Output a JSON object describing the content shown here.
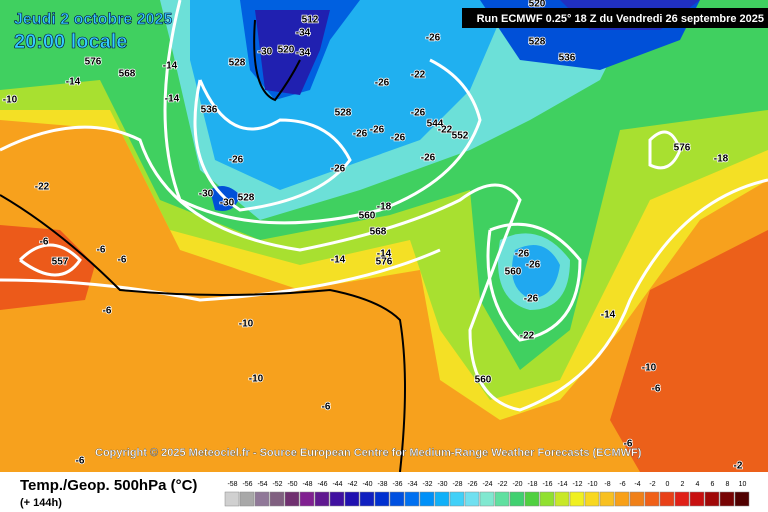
{
  "header": {
    "date": "Jeudi 2 octobre 2025",
    "time": "20:00 locale",
    "run": "Run ECMWF 0.25° 18 Z du Vendredi 26 septembre 2025"
  },
  "copyright": "Copyright © 2025 Meteociel.fr - Source European Centre for Medium-Range Weather Forecasts (ECMWF)",
  "footer": {
    "title": "Temp./Geop. 500hPa (°C)",
    "lead": "(+ 144h)"
  },
  "legend": {
    "ticks": [
      -58,
      -56,
      -54,
      -52,
      -50,
      -48,
      -46,
      -44,
      -42,
      -40,
      -38,
      -36,
      -34,
      -32,
      -30,
      -28,
      -26,
      -24,
      -22,
      -20,
      -18,
      -16,
      -14,
      -12,
      -10,
      -8,
      -6,
      -4,
      -2,
      0,
      2,
      4,
      6,
      8,
      10
    ],
    "colors": [
      "#d0d0d0",
      "#a8a8a8",
      "#907898",
      "#806080",
      "#703070",
      "#802090",
      "#601890",
      "#4010a0",
      "#2010b0",
      "#1020c0",
      "#0030d0",
      "#0050e0",
      "#0070f0",
      "#0090f8",
      "#10b0f8",
      "#40d0f8",
      "#70e0f0",
      "#80e8d0",
      "#60e0a0",
      "#40d070",
      "#50d040",
      "#90e030",
      "#c8e828",
      "#f0f020",
      "#f8d820",
      "#f8c020",
      "#f8a018",
      "#f08018",
      "#f06018",
      "#e84018",
      "#e02018",
      "#c81010",
      "#a00808",
      "#780404",
      "#500000"
    ]
  },
  "map": {
    "labels": [
      "576",
      "568",
      "-14",
      "-14",
      "-14",
      "-10",
      "528",
      "-30",
      "520",
      "-34",
      "-34",
      "512",
      "536",
      "528",
      "-26",
      "-26",
      "-26",
      "-26",
      "-26",
      "544",
      "-22",
      "552",
      "-22",
      "-26",
      "-26",
      "-26",
      "-26",
      "-30",
      "-30",
      "528",
      "-22",
      "-18",
      "560",
      "568",
      "-14",
      "576",
      "-14",
      "-6",
      "-6",
      "-6",
      "557",
      "-6",
      "-10",
      "-10",
      "-6",
      "-6",
      "-26",
      "-26",
      "560",
      "-26",
      "-22",
      "-14",
      "560",
      "-10",
      "-6",
      "-6",
      "-2",
      "576",
      "-18",
      "528",
      "536",
      "520"
    ]
  }
}
